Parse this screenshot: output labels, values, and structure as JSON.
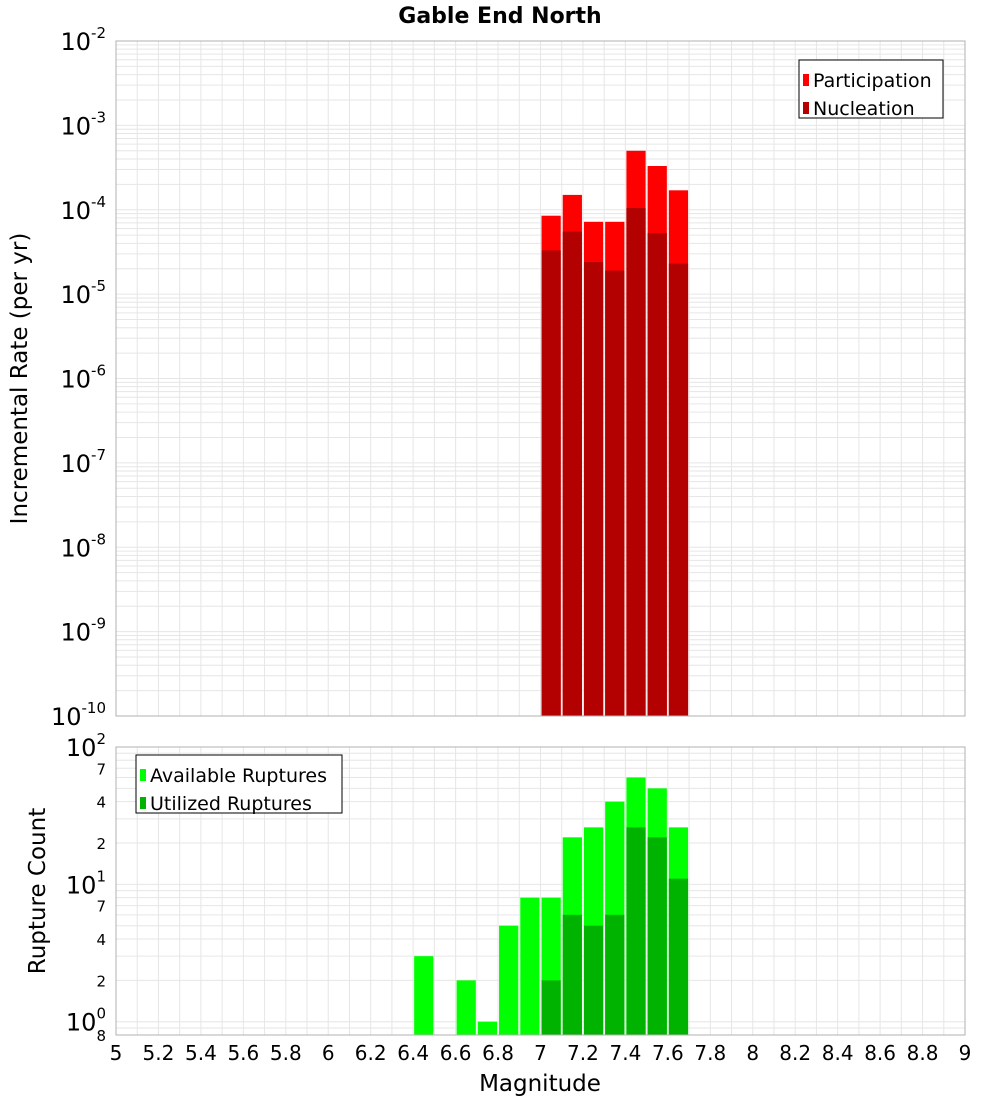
{
  "title": "Gable End North",
  "xlabel": "Magnitude",
  "chart_data": [
    {
      "type": "bar",
      "ylabel": "Incremental Rate (per yr)",
      "yscale": "log",
      "ylim": [
        1e-10,
        0.01
      ],
      "xlim": [
        5,
        9
      ],
      "bar_width": 0.1,
      "y_decades": [
        {
          "base": "10",
          "exp": "-2",
          "value": 0.01
        },
        {
          "base": "10",
          "exp": "-3",
          "value": 0.001
        },
        {
          "base": "10",
          "exp": "-4",
          "value": 0.0001
        },
        {
          "base": "10",
          "exp": "-5",
          "value": 1e-05
        },
        {
          "base": "10",
          "exp": "-6",
          "value": 1e-06
        },
        {
          "base": "10",
          "exp": "-7",
          "value": 1e-07
        },
        {
          "base": "10",
          "exp": "-8",
          "value": 1e-08
        },
        {
          "base": "10",
          "exp": "-9",
          "value": 1e-09
        },
        {
          "base": "10",
          "exp": "-10",
          "value": 1e-10
        }
      ],
      "legend_position": "top-right",
      "series": [
        {
          "name": "Participation",
          "color": "#ff0000",
          "x": [
            7.05,
            7.15,
            7.25,
            7.35,
            7.45,
            7.55,
            7.65
          ],
          "values": [
            8.5e-05,
            0.00015,
            7.2e-05,
            7.2e-05,
            0.0005,
            0.00033,
            0.00017
          ]
        },
        {
          "name": "Nucleation",
          "color": "#b30000",
          "x": [
            7.05,
            7.15,
            7.25,
            7.35,
            7.45,
            7.55,
            7.65
          ],
          "values": [
            3.3e-05,
            5.5e-05,
            2.4e-05,
            1.9e-05,
            0.000105,
            5.3e-05,
            2.3e-05
          ]
        }
      ]
    },
    {
      "type": "bar",
      "ylabel": "Rupture Count",
      "yscale": "log",
      "ylim": [
        0.8,
        100
      ],
      "xlim": [
        5,
        9
      ],
      "bar_width": 0.1,
      "y_decades": [
        {
          "base": "10",
          "exp": "2",
          "value": 100
        },
        {
          "base": "10",
          "exp": "1",
          "value": 10
        },
        {
          "base": "10",
          "exp": "0",
          "value": 1
        }
      ],
      "y_minor_labels": [
        {
          "label": "7",
          "value": 70
        },
        {
          "label": "4",
          "value": 40
        },
        {
          "label": "2",
          "value": 20
        },
        {
          "label": "7",
          "value": 7
        },
        {
          "label": "4",
          "value": 4
        },
        {
          "label": "2",
          "value": 2
        },
        {
          "label": "8",
          "value": 0.8
        }
      ],
      "legend_position": "top-left",
      "series": [
        {
          "name": "Available Ruptures",
          "color": "#00ff00",
          "x": [
            6.45,
            6.65,
            6.75,
            6.85,
            6.95,
            7.05,
            7.15,
            7.25,
            7.35,
            7.45,
            7.55,
            7.65
          ],
          "values": [
            3,
            2,
            1,
            5,
            8,
            8,
            22,
            26,
            40,
            60,
            50,
            26
          ]
        },
        {
          "name": "Utilized Ruptures",
          "color": "#00b300",
          "x": [
            7.05,
            7.15,
            7.25,
            7.35,
            7.45,
            7.55,
            7.65
          ],
          "values": [
            2,
            6,
            5,
            6,
            26,
            22,
            11
          ]
        }
      ]
    }
  ],
  "x_ticks": [
    "5",
    "5.2",
    "5.4",
    "5.6",
    "5.8",
    "6",
    "6.2",
    "6.4",
    "6.6",
    "6.8",
    "7",
    "7.2",
    "7.4",
    "7.6",
    "7.8",
    "8",
    "8.2",
    "8.4",
    "8.6",
    "8.8",
    "9"
  ]
}
